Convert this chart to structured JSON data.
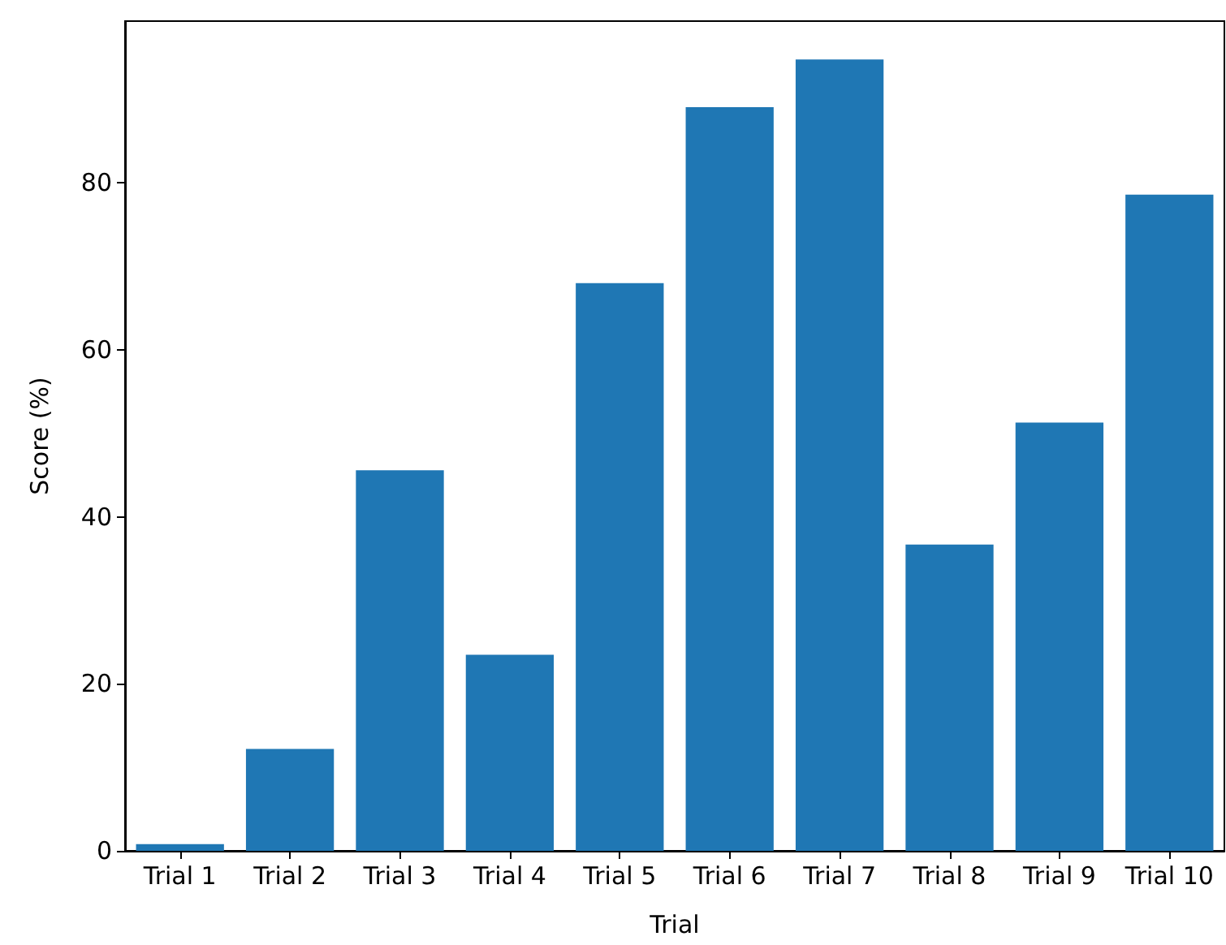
{
  "chart_data": {
    "type": "bar",
    "xlabel": "Trial",
    "ylabel": "Score (%)",
    "categories": [
      "Trial 1",
      "Trial 2",
      "Trial 3",
      "Trial 4",
      "Trial 5",
      "Trial 6",
      "Trial 7",
      "Trial 8",
      "Trial 9",
      "Trial 10"
    ],
    "values": [
      0.8,
      12.2,
      45.6,
      23.5,
      68.0,
      89.1,
      94.8,
      36.7,
      51.3,
      78.6
    ],
    "color": "#1f77b4",
    "ylim": [
      0,
      99.4
    ],
    "yticks": [
      0,
      20,
      40,
      60,
      80
    ],
    "grid": false
  }
}
